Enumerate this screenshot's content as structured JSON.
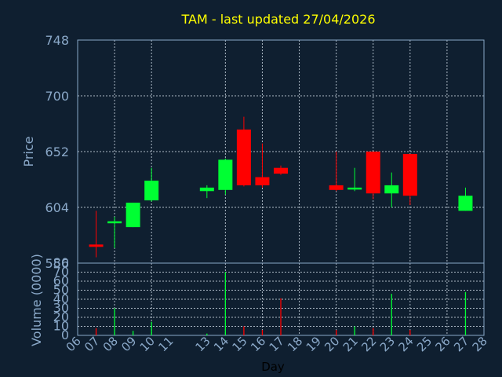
{
  "chart_data": {
    "type": "candlestick",
    "title": "TAM - last updated 27/04/2026",
    "price_panel": {
      "ylabel": "Price",
      "ylim": [
        556,
        748
      ],
      "yticks": [
        556,
        604,
        652,
        700,
        748
      ],
      "grid": true
    },
    "volume_panel": {
      "ylabel": "Volume (0000)",
      "ylim": [
        0,
        80
      ],
      "yticks": [
        0,
        10,
        20,
        30,
        40,
        50,
        60,
        70,
        80
      ],
      "grid": true
    },
    "xlabel": "Day",
    "x_range": [
      6,
      28
    ],
    "xticks": [
      "06",
      "07",
      "08",
      "09",
      "10",
      "11",
      "13",
      "14",
      "15",
      "16",
      "17",
      "18",
      "19",
      "20",
      "21",
      "22",
      "23",
      "24",
      "25",
      "26",
      "27",
      "28"
    ],
    "colors": {
      "up": "#00ff33",
      "down": "#ff0000"
    },
    "candles": [
      {
        "day": "07",
        "open": 572,
        "high": 601,
        "low": 561,
        "close": 570,
        "volume": 8
      },
      {
        "day": "08",
        "open": 591,
        "high": 596,
        "low": 569,
        "close": 592,
        "volume": 30
      },
      {
        "day": "09",
        "open": 587,
        "high": 608,
        "low": 587,
        "close": 608,
        "volume": 5
      },
      {
        "day": "10",
        "open": 610,
        "high": 638,
        "low": 609,
        "close": 627,
        "volume": 15
      },
      {
        "day": "13",
        "open": 618,
        "high": 623,
        "low": 612,
        "close": 621,
        "volume": 2
      },
      {
        "day": "14",
        "open": 619,
        "high": 646,
        "low": 615,
        "close": 645,
        "volume": 70
      },
      {
        "day": "15",
        "open": 671,
        "high": 682,
        "low": 622,
        "close": 623,
        "volume": 10
      },
      {
        "day": "16",
        "open": 630,
        "high": 659,
        "low": 621,
        "close": 623,
        "volume": 6
      },
      {
        "day": "17",
        "open": 638,
        "high": 640,
        "low": 632,
        "close": 633,
        "volume": 41
      },
      {
        "day": "20",
        "open": 623,
        "high": 652,
        "low": 618,
        "close": 619,
        "volume": 6
      },
      {
        "day": "21",
        "open": 620,
        "high": 638,
        "low": 618,
        "close": 621,
        "volume": 10
      },
      {
        "day": "22",
        "open": 652,
        "high": 652,
        "low": 611,
        "close": 616,
        "volume": 8
      },
      {
        "day": "23",
        "open": 616,
        "high": 634,
        "low": 604,
        "close": 623,
        "volume": 46
      },
      {
        "day": "24",
        "open": 650,
        "high": 650,
        "low": 606,
        "close": 614,
        "volume": 6
      },
      {
        "day": "27",
        "open": 601,
        "high": 621,
        "low": 601,
        "close": 614,
        "volume": 48
      }
    ]
  }
}
